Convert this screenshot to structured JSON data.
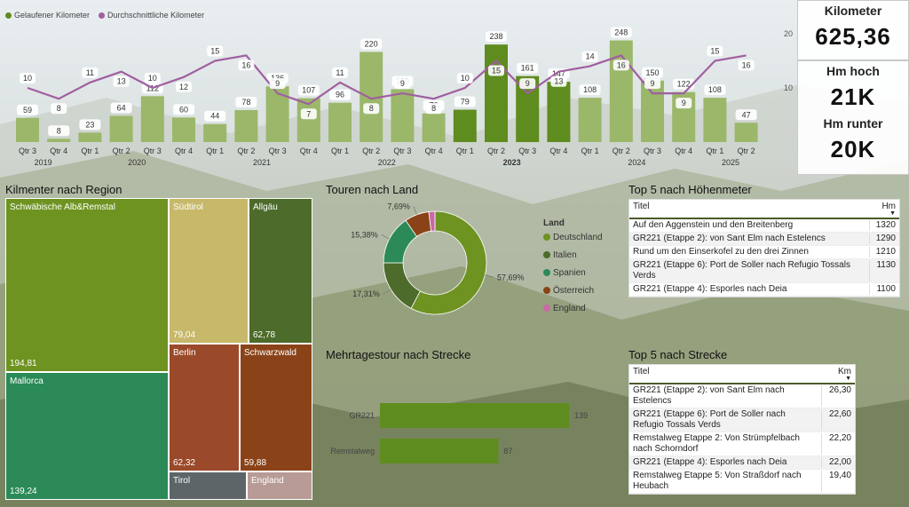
{
  "colors": {
    "bar": "#5f8c1f",
    "bar_light": "#9bb76a",
    "line": "#a05fa0",
    "treemap": [
      "#6e9321",
      "#2b8a57",
      "#c7b86a",
      "#4d6b2a",
      "#9a4a2a",
      "#8a4318",
      "#5d6568",
      "#b99b96"
    ],
    "donut": [
      "#6e9321",
      "#4d6b2a",
      "#2b8a57",
      "#8a4318",
      "#c86aa6"
    ]
  },
  "combo": {
    "legend": [
      "Gelaufener Kilometer",
      "Durchschnittliche Kilometer"
    ],
    "y_ticks": [
      "20",
      "10"
    ],
    "quarters": [
      "Qtr 3",
      "Qtr 4",
      "Qtr 1",
      "Qtr 2",
      "Qtr 3",
      "Qtr 4",
      "Qtr 1",
      "Qtr 2",
      "Qtr 3",
      "Qtr 4",
      "Qtr 1",
      "Qtr 2",
      "Qtr 3",
      "Qtr 4",
      "Qtr 1",
      "Qtr 2",
      "Qtr 3",
      "Qtr 4",
      "Qtr 1",
      "Qtr 2",
      "Qtr 3",
      "Qtr 4",
      "Qtr 1",
      "Qtr 2"
    ],
    "years": [
      {
        "label": "2019",
        "center": 0.5
      },
      {
        "label": "2020",
        "center": 3.5
      },
      {
        "label": "2021",
        "center": 7.5
      },
      {
        "label": "2022",
        "center": 11.5
      },
      {
        "label": "2023",
        "center": 15.5,
        "bold": true
      },
      {
        "label": "2024",
        "center": 19.5
      },
      {
        "label": "2025",
        "center": 22.5
      }
    ]
  },
  "chart_data": {
    "type": "bar+line",
    "categories": [
      "2019 Qtr 3",
      "2019 Qtr 4",
      "2020 Qtr 1",
      "2020 Qtr 2",
      "2020 Qtr 3",
      "2020 Qtr 4",
      "2021 Qtr 1",
      "2021 Qtr 2",
      "2021 Qtr 3",
      "2021 Qtr 4",
      "2022 Qtr 1",
      "2022 Qtr 2",
      "2022 Qtr 3",
      "2022 Qtr 4",
      "2023 Qtr 1",
      "2023 Qtr 2",
      "2023 Qtr 3",
      "2023 Qtr 4",
      "2024 Qtr 1",
      "2024 Qtr 2",
      "2024 Qtr 3",
      "2024 Qtr 4",
      "2025 Qtr 1",
      "2025 Qtr 2"
    ],
    "series": [
      {
        "name": "Gelaufener Kilometer",
        "type": "bar",
        "values": [
          59,
          8,
          23,
          64,
          112,
          60,
          44,
          78,
          136,
          107,
          96,
          220,
          129,
          70,
          79,
          238,
          161,
          147,
          108,
          248,
          150,
          122,
          108,
          47
        ]
      },
      {
        "name": "Durchschnittliche Kilometer",
        "type": "line",
        "values": [
          10,
          8,
          11,
          13,
          10,
          12,
          15,
          16,
          9,
          7,
          11,
          8,
          9,
          8,
          10,
          15,
          9,
          13,
          14,
          16,
          9,
          9,
          15,
          16
        ]
      }
    ],
    "highlight": [
      14,
      15,
      16,
      17
    ],
    "y_right_ticks": [
      10,
      20
    ]
  },
  "kpis": [
    {
      "label": "Kilometer",
      "value": "625,36"
    },
    {
      "label": "Hm hoch",
      "value": "21K"
    },
    {
      "label": "Hm runter",
      "value": "20K"
    }
  ],
  "treemap": {
    "title": "Kilmenter nach Region",
    "cells": [
      {
        "name": "Schwäbische Alb&Remstal",
        "value": "194,81"
      },
      {
        "name": "Mallorca",
        "value": "139,24"
      },
      {
        "name": "Südtirol",
        "value": "79,04"
      },
      {
        "name": "Allgäu",
        "value": "62,78"
      },
      {
        "name": "Berlin",
        "value": "62,32"
      },
      {
        "name": "Schwarzwald",
        "value": "59,88"
      },
      {
        "name": "Tirol",
        "value": ""
      },
      {
        "name": "England",
        "value": ""
      }
    ]
  },
  "donut": {
    "title": "Touren nach Land",
    "legend_title": "Land",
    "slices": [
      {
        "name": "Deutschland",
        "pct": 57.69,
        "label": "57,69%"
      },
      {
        "name": "Italien",
        "pct": 17.31,
        "label": "17,31%"
      },
      {
        "name": "Spanien",
        "pct": 15.38,
        "label": "15,38%"
      },
      {
        "name": "Österreich",
        "pct": 7.69,
        "label": "7,69%"
      },
      {
        "name": "England",
        "pct": 1.93,
        "label": ""
      }
    ]
  },
  "bars": {
    "title": "Mehrtagestour nach Strecke",
    "max": 150,
    "items": [
      {
        "name": "GR221",
        "value": 139,
        "label": "139"
      },
      {
        "name": "Remstalweg",
        "value": 87,
        "label": "87"
      }
    ]
  },
  "top_hm": {
    "title": "Top 5 nach Höhenmeter",
    "col1": "Titel",
    "col2": "Hm",
    "rows": [
      {
        "title": "Auf den Aggenstein und den Breitenberg",
        "val": "1320"
      },
      {
        "title": "GR221 (Etappe 2): von Sant Elm nach Estelencs",
        "val": "1290"
      },
      {
        "title": "Rund um den Einserkofel zu den drei Zinnen",
        "val": "1210"
      },
      {
        "title": "GR221 (Etappe 6): Port de Soller nach Refugio Tossals Verds",
        "val": "1130"
      },
      {
        "title": "GR221 (Etappe 4): Esporles nach Deia",
        "val": "1100"
      }
    ]
  },
  "top_km": {
    "title": "Top 5 nach Strecke",
    "col1": "Titel",
    "col2": "Km",
    "rows": [
      {
        "title": "GR221 (Etappe 2): von Sant Elm nach Estelencs",
        "val": "26,30"
      },
      {
        "title": "GR221 (Etappe 6): Port de Soller nach Refugio Tossals Verds",
        "val": "22,60"
      },
      {
        "title": "Remstalweg Etappe 2: Von Strümpfelbach nach Schorndorf",
        "val": "22,20"
      },
      {
        "title": "GR221 (Etappe 4): Esporles nach Deia",
        "val": "22,00"
      },
      {
        "title": "Remstalweg Etappe 5: Von Straßdorf nach Heubach",
        "val": "19,40"
      }
    ]
  }
}
